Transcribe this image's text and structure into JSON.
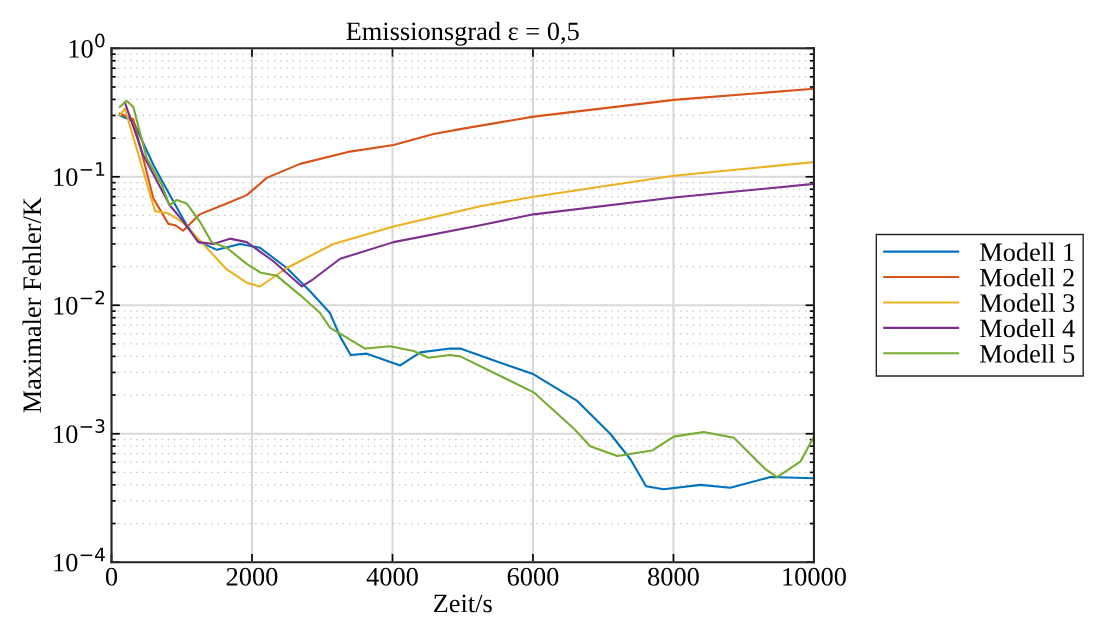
{
  "chart_data": {
    "type": "line",
    "title": "Emissionsgrad ε = 0,5",
    "xlabel": "Zeit/s",
    "ylabel": "Maximaler Fehler/K",
    "log": "y",
    "grid": true,
    "legend": "right",
    "line_style": "solid",
    "marker": "none",
    "xlim": [
      0,
      10000
    ],
    "xticks": [
      0,
      2000,
      4000,
      6000,
      8000,
      10000
    ],
    "ylim": [
      0.0001,
      1
    ],
    "yticks": [
      {
        "value": 0.0001,
        "label": "10$^{−4}$"
      },
      {
        "value": 0.001,
        "label": "10$^{−3}$"
      },
      {
        "value": 0.01,
        "label": "10$^{−2}$"
      },
      {
        "value": 0.1,
        "label": "10$^{−1}$"
      },
      {
        "value": 1,
        "label": "10$^{0}$"
      }
    ],
    "series": [
      {
        "name": "Modell 1",
        "color": "#0072bd",
        "x": [
          120,
          310,
          595,
          830,
          1070,
          1255,
          1500,
          1830,
          2115,
          2495,
          2830,
          3110,
          3255,
          3405,
          3635,
          4110,
          4395,
          4820,
          4965,
          6010,
          6630,
          7100,
          7390,
          7610,
          7860,
          8385,
          8810,
          9380,
          10000
        ],
        "values": [
          0.3,
          0.27,
          0.124,
          0.072,
          0.042,
          0.031,
          0.027,
          0.03,
          0.028,
          0.0195,
          0.0128,
          0.0087,
          0.0057,
          0.0041,
          0.0042,
          0.0034,
          0.0043,
          0.0046,
          0.0046,
          0.0029,
          0.0018,
          0.001,
          0.00063,
          0.00039,
          0.00037,
          0.0004,
          0.00038,
          0.00046,
          0.00045
        ]
      },
      {
        "name": "Modell 2",
        "color": "#d95319",
        "x": [
          120,
          310,
          595,
          810,
          905,
          1020,
          1255,
          1640,
          1925,
          2210,
          2685,
          3395,
          4015,
          4585,
          4965,
          6010,
          8005,
          10000
        ],
        "values": [
          0.31,
          0.28,
          0.068,
          0.043,
          0.042,
          0.038,
          0.051,
          0.062,
          0.072,
          0.098,
          0.126,
          0.157,
          0.177,
          0.215,
          0.235,
          0.294,
          0.397,
          0.484
        ]
      },
      {
        "name": "Modell 3",
        "color": "#edb120",
        "x": [
          120,
          190,
          620,
          810,
          1020,
          1355,
          1640,
          1925,
          2115,
          2495,
          3160,
          4015,
          5250,
          6010,
          8005,
          10000
        ],
        "values": [
          0.3,
          0.34,
          0.054,
          0.052,
          0.044,
          0.028,
          0.019,
          0.015,
          0.014,
          0.0195,
          0.03,
          0.041,
          0.059,
          0.07,
          0.102,
          0.13
        ]
      },
      {
        "name": "Modell 4",
        "color": "#7e2f8e",
        "x": [
          190,
          450,
          830,
          1020,
          1235,
          1450,
          1685,
          1925,
          2305,
          2710,
          2875,
          3255,
          4015,
          5250,
          6010,
          8005,
          10000
        ],
        "values": [
          0.38,
          0.148,
          0.06,
          0.045,
          0.031,
          0.03,
          0.033,
          0.031,
          0.022,
          0.014,
          0.016,
          0.023,
          0.031,
          0.042,
          0.051,
          0.069,
          0.088
        ]
      },
      {
        "name": "Modell 5",
        "color": "#77ac30",
        "x": [
          120,
          215,
          310,
          500,
          715,
          825,
          930,
          1070,
          1255,
          1425,
          1640,
          1925,
          2115,
          2350,
          2685,
          2970,
          3110,
          3610,
          3965,
          4300,
          4515,
          4820,
          4965,
          6010,
          6580,
          6815,
          7200,
          7695,
          8005,
          8430,
          8860,
          9310,
          9475,
          9810,
          10000
        ],
        "values": [
          0.35,
          0.39,
          0.35,
          0.14,
          0.087,
          0.06,
          0.066,
          0.062,
          0.045,
          0.031,
          0.028,
          0.021,
          0.018,
          0.017,
          0.012,
          0.0087,
          0.0067,
          0.0046,
          0.0048,
          0.0044,
          0.0039,
          0.0041,
          0.004,
          0.0021,
          0.0011,
          0.0008,
          0.00067,
          0.00074,
          0.00095,
          0.00103,
          0.00093,
          0.00053,
          0.00046,
          0.00061,
          0.00095
        ]
      }
    ]
  }
}
